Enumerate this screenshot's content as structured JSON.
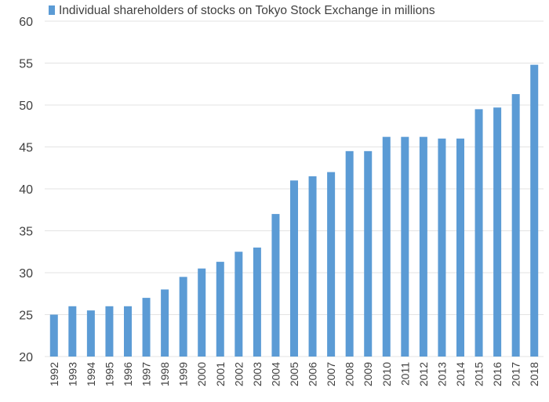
{
  "colors": {
    "bar": "#5b9bd5",
    "grid": "#e3e3e3",
    "axis_text": "#404040"
  },
  "chart_data": {
    "type": "bar",
    "legend_position": "top-left",
    "grid": true,
    "categories": [
      "1992",
      "1993",
      "1994",
      "1995",
      "1996",
      "1997",
      "1998",
      "1999",
      "2000",
      "2001",
      "2002",
      "2003",
      "2004",
      "2005",
      "2006",
      "2007",
      "2008",
      "2009",
      "2010",
      "2011",
      "2012",
      "2013",
      "2014",
      "2015",
      "2016",
      "2017",
      "2018"
    ],
    "series": [
      {
        "name": "Individual shareholders of stocks on Tokyo Stock Exchange in millions",
        "values": [
          25.0,
          26.0,
          25.5,
          26.0,
          26.0,
          27.0,
          28.0,
          29.5,
          30.5,
          31.3,
          32.5,
          33.0,
          37.0,
          41.0,
          41.5,
          42.0,
          44.5,
          44.5,
          46.2,
          46.2,
          46.2,
          46.0,
          46.0,
          49.5,
          49.7,
          51.3,
          54.8
        ]
      }
    ],
    "ylim": [
      20,
      60
    ],
    "yticks": [
      20,
      25,
      30,
      35,
      40,
      45,
      50,
      55,
      60
    ]
  }
}
